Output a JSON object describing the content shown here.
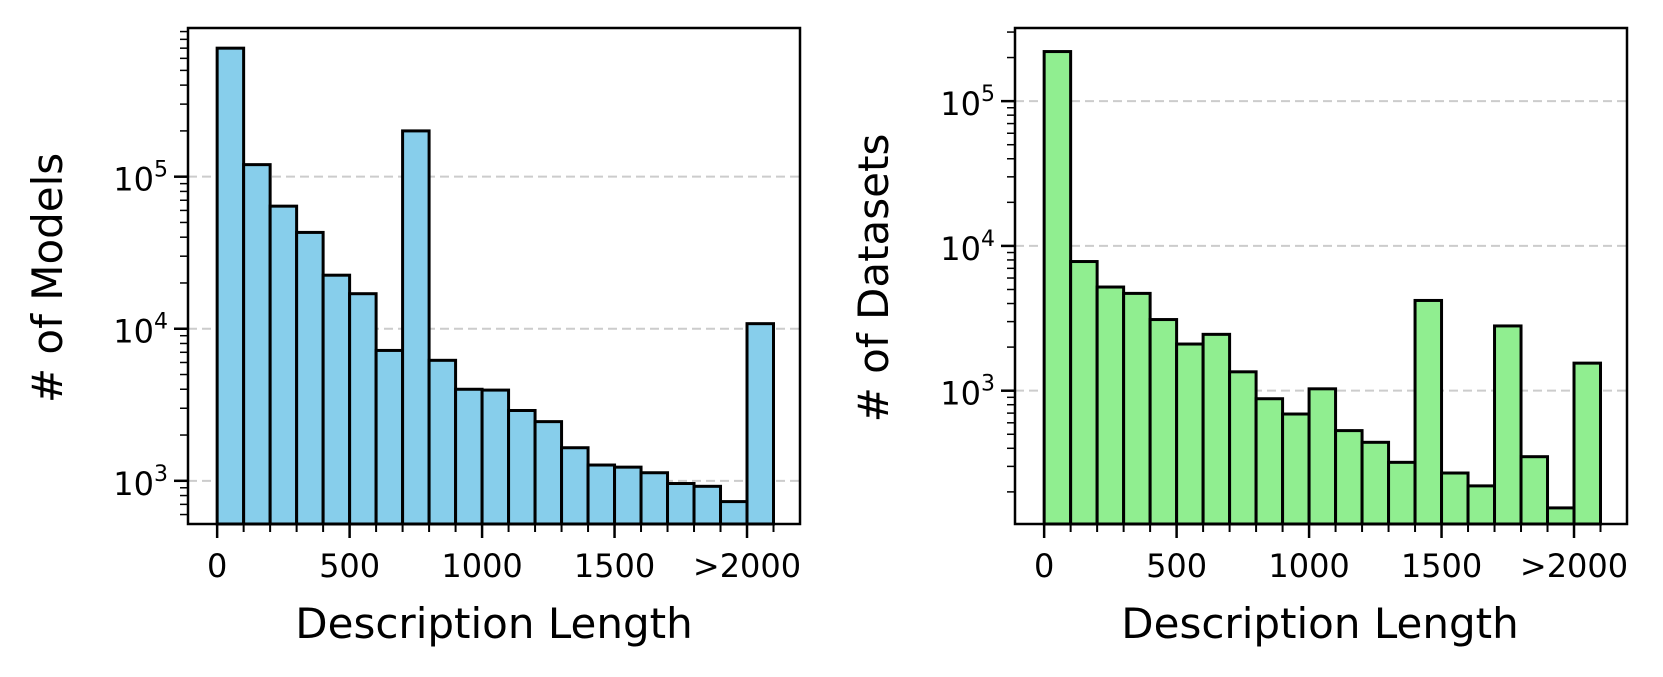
{
  "chart_data": [
    {
      "type": "bar",
      "xlabel": "Description Length",
      "ylabel": "# of Models",
      "y_scale": "log",
      "ylim": [
        520,
        950000
      ],
      "xlim": [
        -110,
        2200
      ],
      "bin_width": 100,
      "bin_starts": [
        0,
        100,
        200,
        300,
        400,
        500,
        600,
        700,
        800,
        900,
        1000,
        1100,
        1200,
        1300,
        1400,
        1500,
        1600,
        1700,
        1800,
        1900,
        2000
      ],
      "values": [
        700000,
        120000,
        64000,
        43000,
        22500,
        17000,
        7200,
        200000,
        6200,
        4000,
        3950,
        2900,
        2450,
        1650,
        1270,
        1230,
        1130,
        960,
        920,
        730,
        10800
      ],
      "x_ticks": [
        0,
        500,
        1000,
        1500,
        2000
      ],
      "x_tick_labels": [
        "0",
        "500",
        "1000",
        "1500",
        ">2000"
      ],
      "y_major_ticks": [
        {
          "value": 1000,
          "base": "10",
          "exp": "3"
        },
        {
          "value": 10000,
          "base": "10",
          "exp": "4"
        },
        {
          "value": 100000,
          "base": "10",
          "exp": "5"
        }
      ],
      "grid": "y-major dashed",
      "bar_color": "#87CEEB",
      "edge_color": "#000000",
      "grid_color": "#cccccc"
    },
    {
      "type": "bar",
      "xlabel": "Description Length",
      "ylabel": "# of Datasets",
      "y_scale": "log",
      "ylim": [
        120,
        320000
      ],
      "xlim": [
        -110,
        2200
      ],
      "bin_width": 100,
      "bin_starts": [
        0,
        100,
        200,
        300,
        400,
        500,
        600,
        700,
        800,
        900,
        1000,
        1100,
        1200,
        1300,
        1400,
        1500,
        1600,
        1700,
        1800,
        1900,
        2000
      ],
      "values": [
        220000,
        7800,
        5200,
        4700,
        3100,
        2100,
        2450,
        1350,
        880,
        690,
        1030,
        530,
        440,
        320,
        4200,
        270,
        220,
        2800,
        350,
        155,
        1550
      ],
      "x_ticks": [
        0,
        500,
        1000,
        1500,
        2000
      ],
      "x_tick_labels": [
        "0",
        "500",
        "1000",
        "1500",
        ">2000"
      ],
      "y_major_ticks": [
        {
          "value": 1000,
          "base": "10",
          "exp": "3"
        },
        {
          "value": 10000,
          "base": "10",
          "exp": "4"
        },
        {
          "value": 100000,
          "base": "10",
          "exp": "5"
        }
      ],
      "grid": "y-major dashed",
      "bar_color": "#90EE90",
      "edge_color": "#000000",
      "grid_color": "#cccccc"
    }
  ]
}
